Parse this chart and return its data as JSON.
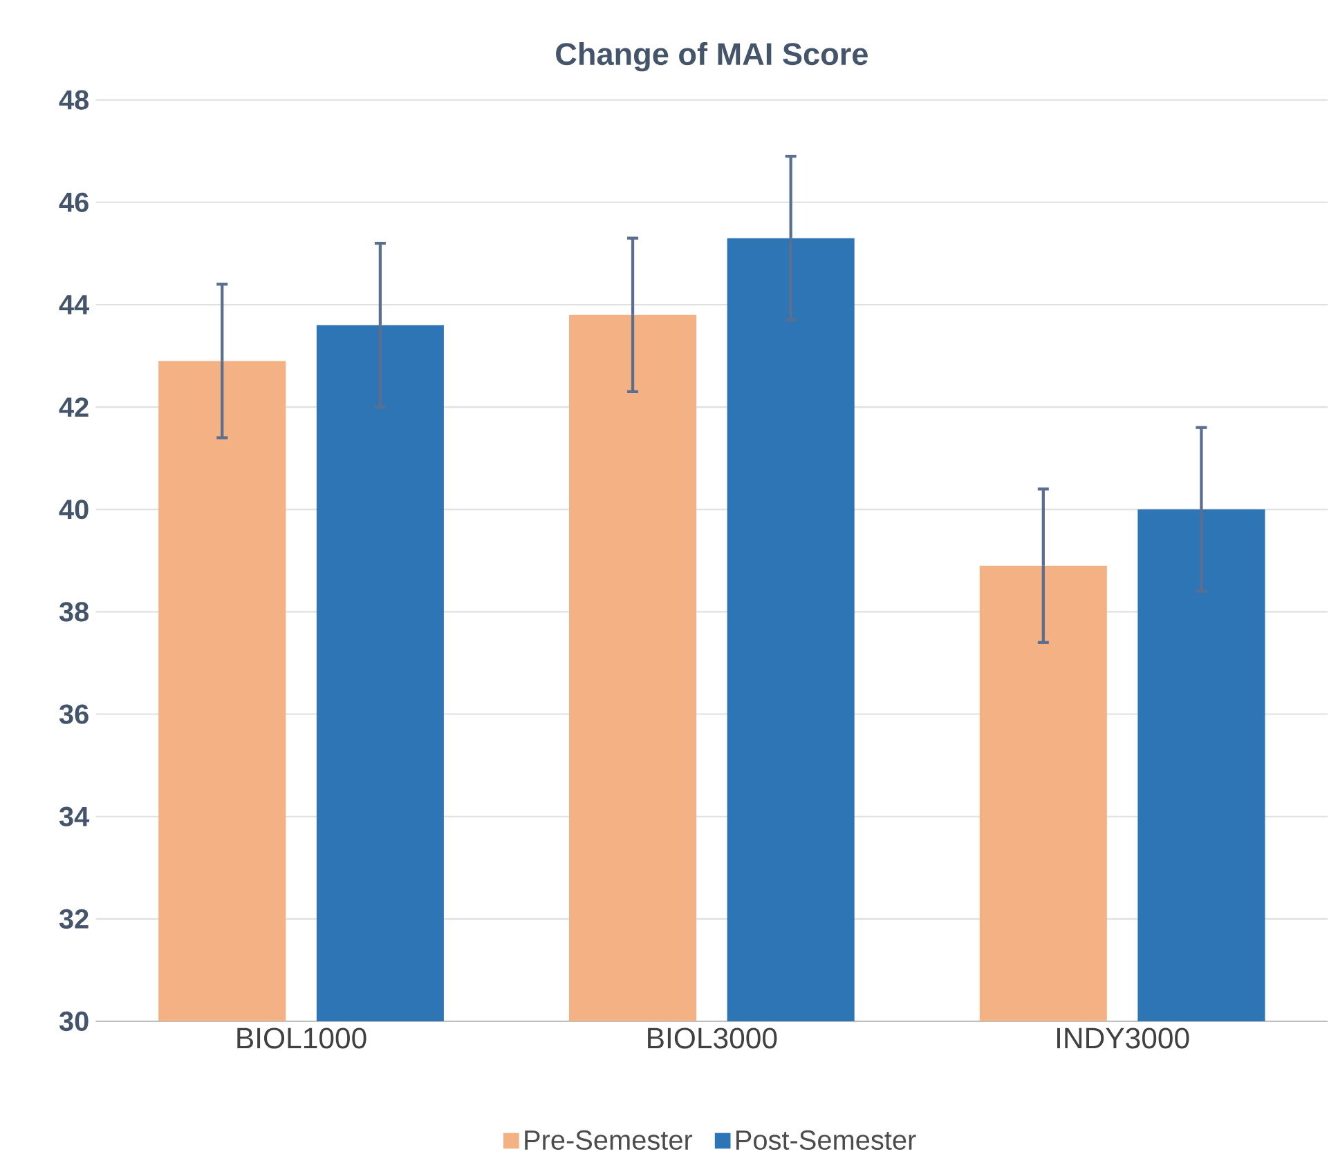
{
  "chart_data": {
    "type": "bar",
    "title": "Change of MAI Score",
    "categories": [
      "BIOL1000",
      "BIOL3000",
      "INDY3000"
    ],
    "series": [
      {
        "name": "Pre-Semester",
        "color": "#f4b183",
        "values": [
          42.9,
          43.8,
          38.9
        ],
        "errors": [
          1.5,
          1.5,
          1.5
        ]
      },
      {
        "name": "Post-Semester",
        "color": "#2e75b6",
        "values": [
          43.6,
          45.3,
          40.0
        ],
        "errors": [
          1.6,
          1.6,
          1.6
        ]
      }
    ],
    "ylim": [
      30,
      48
    ],
    "yticks": [
      30,
      32,
      34,
      36,
      38,
      40,
      42,
      44,
      46,
      48
    ],
    "grid": "y",
    "legend": "bottom"
  }
}
